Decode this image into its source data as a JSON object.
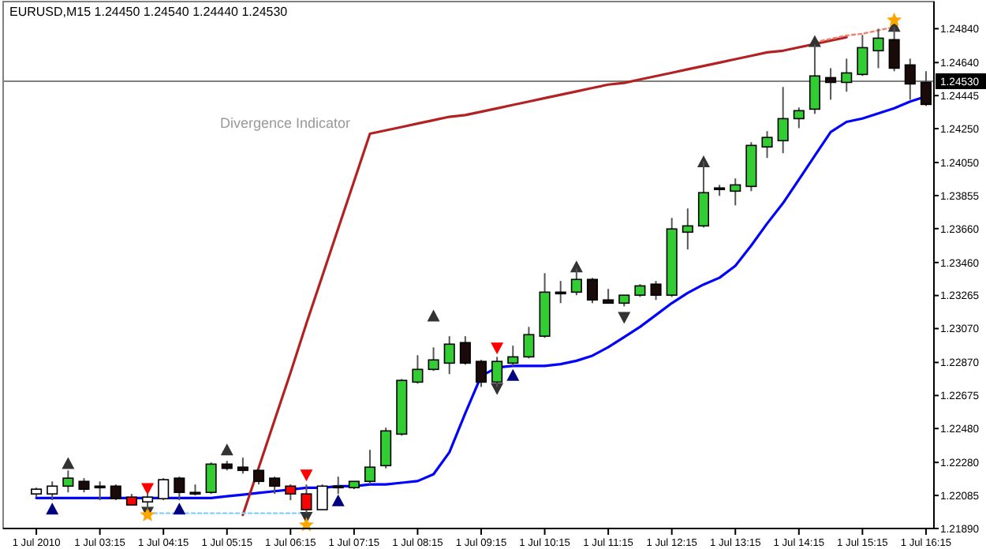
{
  "chart_data": {
    "type": "candlestick",
    "title": "EURUSD,M15  1.24450 1.24540 1.24440 1.24530",
    "categories": [
      "1 Jul 2010",
      null,
      null,
      null,
      "1 Jul 03:15",
      null,
      null,
      null,
      "1 Jul 04:15",
      null,
      null,
      null,
      "1 Jul 05:15",
      null,
      null,
      null,
      "1 Jul 06:15",
      null,
      null,
      null,
      "1 Jul 07:15",
      null,
      null,
      null,
      "1 Jul 08:15",
      null,
      null,
      null,
      "1 Jul 09:15",
      null,
      null,
      null,
      "1 Jul 10:15",
      null,
      null,
      null,
      "1 Jul 11:15",
      null,
      null,
      null,
      "1 Jul 12:15",
      null,
      null,
      null,
      "1 Jul 13:15",
      null,
      null,
      null,
      "1 Jul 14:15",
      null,
      null,
      null,
      "1 Jul 15:15",
      null,
      null,
      null,
      "1 Jul 16:15"
    ],
    "ohlc": [
      [
        1.22094,
        1.22131,
        1.22075,
        1.22122
      ],
      [
        1.22094,
        1.22168,
        1.22057,
        1.2214
      ],
      [
        1.2214,
        1.22233,
        1.22103,
        1.22187
      ],
      [
        1.22168,
        1.22187,
        1.22103,
        1.22122
      ],
      [
        1.2214,
        1.22168,
        1.22057,
        1.2214
      ],
      [
        1.2214,
        1.2215,
        1.22057,
        1.22066
      ],
      [
        1.22075,
        1.22094,
        1.22029,
        1.22029
      ],
      [
        1.22047,
        1.22094,
        1.22001,
        1.22075
      ],
      [
        1.22066,
        1.22187,
        1.22057,
        1.22178
      ],
      [
        1.22187,
        1.22196,
        1.22057,
        1.22103
      ],
      [
        1.22103,
        1.2215,
        1.22085,
        1.22094
      ],
      [
        1.22103,
        1.2228,
        1.22094,
        1.2227
      ],
      [
        1.2227,
        1.22289,
        1.22233,
        1.22245
      ],
      [
        1.22252,
        1.22308,
        1.22214,
        1.22233
      ],
      [
        1.22233,
        1.22245,
        1.2215,
        1.22168
      ],
      [
        1.22187,
        1.22196,
        1.22094,
        1.2214
      ],
      [
        1.2214,
        1.2215,
        1.22057,
        1.22094
      ],
      [
        1.22094,
        1.2215,
        1.21982,
        1.22001
      ],
      [
        1.22001,
        1.2215,
        1.22001,
        1.2214
      ],
      [
        1.2214,
        1.22196,
        1.22094,
        1.22131
      ],
      [
        1.22131,
        1.22168,
        1.22122,
        1.22168
      ],
      [
        1.22168,
        1.22354,
        1.2215,
        1.22252
      ],
      [
        1.22261,
        1.22485,
        1.22245,
        1.22466
      ],
      [
        1.22447,
        1.22772,
        1.22438,
        1.22764
      ],
      [
        1.22754,
        1.22913,
        1.22745,
        1.22829
      ],
      [
        1.22829,
        1.22959,
        1.2282,
        1.22885
      ],
      [
        1.22866,
        1.23025,
        1.22801,
        1.22978
      ],
      [
        1.22987,
        1.23025,
        1.22857,
        1.22866
      ],
      [
        1.22876,
        1.22885,
        1.22726,
        1.22754
      ],
      [
        1.22754,
        1.22903,
        1.22726,
        1.22876
      ],
      [
        1.22866,
        1.22969,
        1.22848,
        1.22903
      ],
      [
        1.22903,
        1.2308,
        1.22894,
        1.23034
      ],
      [
        1.23025,
        1.23397,
        1.23015,
        1.23285
      ],
      [
        1.23276,
        1.23351,
        1.2322,
        1.23285
      ],
      [
        1.23285,
        1.23425,
        1.23267,
        1.2336
      ],
      [
        1.2336,
        1.23369,
        1.2322,
        1.23239
      ],
      [
        1.23239,
        1.23304,
        1.2322,
        1.2322
      ],
      [
        1.2322,
        1.23267,
        1.23201,
        1.23267
      ],
      [
        1.23267,
        1.23332,
        1.23257,
        1.23322
      ],
      [
        1.23332,
        1.23351,
        1.23239,
        1.23267
      ],
      [
        1.23267,
        1.23723,
        1.23257,
        1.23658
      ],
      [
        1.23639,
        1.23779,
        1.23537,
        1.23676
      ],
      [
        1.23676,
        1.24058,
        1.23667,
        1.23872
      ],
      [
        1.239,
        1.23918,
        1.23853,
        1.239
      ],
      [
        1.23881,
        1.23956,
        1.23797,
        1.23918
      ],
      [
        1.23909,
        1.2417,
        1.23881,
        1.24151
      ],
      [
        1.24142,
        1.24235,
        1.24077,
        1.24198
      ],
      [
        1.24179,
        1.24496,
        1.24105,
        1.24309
      ],
      [
        1.24309,
        1.24375,
        1.24253,
        1.24356
      ],
      [
        1.24365,
        1.24747,
        1.24337,
        1.24561
      ],
      [
        1.24551,
        1.24607,
        1.24421,
        1.24523
      ],
      [
        1.24523,
        1.24663,
        1.24468,
        1.24579
      ],
      [
        1.2457,
        1.24803,
        1.24561,
        1.24728
      ],
      [
        1.2471,
        1.2484,
        1.24607,
        1.24784
      ],
      [
        1.24775,
        1.24849,
        1.24589,
        1.24607
      ],
      [
        1.24626,
        1.24663,
        1.24421,
        1.24514
      ],
      [
        1.24523,
        1.24589,
        1.24384,
        1.24393
      ]
    ],
    "colors": [
      "#ffffff",
      "#ffffff",
      "#32cd32",
      "#1a0a0a",
      "#1a0a0a",
      "#1a0a0a",
      "#ff0000",
      "#ffffff",
      "#ffffff",
      "#1a0a0a",
      "#1a0a0a",
      "#32cd32",
      "#1a0a0a",
      "#1a0a0a",
      "#1a0a0a",
      "#1a0a0a",
      "#ff0000",
      "#ff0000",
      "#ffffff",
      "#1a0a0a",
      "#32cd32",
      "#32cd32",
      "#32cd32",
      "#32cd32",
      "#32cd32",
      "#32cd32",
      "#32cd32",
      "#1a0a0a",
      "#1a0a0a",
      "#32cd32",
      "#32cd32",
      "#32cd32",
      "#32cd32",
      "#1a0a0a",
      "#32cd32",
      "#1a0a0a",
      "#1a0a0a",
      "#32cd32",
      "#32cd32",
      "#1a0a0a",
      "#32cd32",
      "#32cd32",
      "#32cd32",
      "#1a0a0a",
      "#32cd32",
      "#32cd32",
      "#32cd32",
      "#32cd32",
      "#32cd32",
      "#32cd32",
      "#1a0a0a",
      "#32cd32",
      "#32cd32",
      "#32cd32",
      "#1a0a0a",
      "#1a0a0a",
      "#1a0a0a"
    ],
    "series": [
      {
        "type": "line",
        "color": "#0000ff",
        "line_style": "solid",
        "values": [
          1.2207,
          1.2207,
          1.2207,
          1.2207,
          1.2207,
          1.2207,
          1.2207,
          1.2207,
          1.2207,
          1.2207,
          1.2207,
          1.2207,
          1.2208,
          1.2209,
          1.221,
          1.2211,
          1.2212,
          1.2213,
          1.2213,
          1.2214,
          1.2214,
          1.2215,
          1.2215,
          1.2216,
          1.2217,
          1.2221,
          1.2234,
          1.2257,
          1.2279,
          1.2284,
          1.2285,
          1.2285,
          1.2285,
          1.2286,
          1.2288,
          1.2291,
          1.2296,
          1.2302,
          1.2308,
          1.2315,
          1.2322,
          1.2328,
          1.2333,
          1.2337,
          1.2344,
          1.2356,
          1.2369,
          1.2381,
          1.2395,
          1.2409,
          1.2423,
          1.2429,
          1.2431,
          1.2434,
          1.2437,
          1.2441,
          1.2444
        ]
      },
      {
        "type": "line",
        "color": "#b22222",
        "line_style": "solid",
        "values": [
          null,
          null,
          null,
          null,
          null,
          null,
          null,
          null,
          null,
          null,
          null,
          null,
          null,
          1.2197,
          1.2225,
          1.2253,
          1.2281,
          1.231,
          1.2338,
          1.2366,
          1.2394,
          1.2422,
          1.2424,
          1.2426,
          1.2428,
          1.243,
          1.2432,
          1.2433,
          1.2435,
          1.2437,
          1.2439,
          1.2441,
          1.2443,
          1.2445,
          1.2447,
          1.2449,
          1.2451,
          1.2452,
          1.2454,
          1.2456,
          1.2458,
          1.246,
          1.2462,
          1.2464,
          1.2466,
          1.2468,
          1.247,
          1.2471,
          1.2473,
          1.2475,
          1.2477,
          1.2479,
          null,
          null,
          null,
          null,
          null
        ]
      },
      {
        "type": "line",
        "color": "#f08070",
        "line_style": "dotted",
        "values": [
          null,
          null,
          null,
          null,
          null,
          null,
          null,
          null,
          null,
          null,
          null,
          null,
          null,
          null,
          null,
          null,
          null,
          null,
          null,
          null,
          null,
          null,
          null,
          null,
          null,
          null,
          null,
          null,
          null,
          null,
          null,
          null,
          null,
          null,
          null,
          null,
          null,
          null,
          null,
          null,
          null,
          null,
          null,
          null,
          null,
          null,
          null,
          null,
          null,
          1.2476,
          1.2478,
          1.248,
          1.2481,
          1.2483,
          1.2485,
          null,
          null
        ]
      },
      {
        "type": "line",
        "color": "#87cefa",
        "line_style": "dotted",
        "values": [
          null,
          null,
          null,
          null,
          null,
          null,
          null,
          1.2198,
          1.2198,
          1.2198,
          1.2198,
          1.2198,
          1.2198,
          1.2198,
          1.2198,
          1.2198,
          1.2198,
          1.2198,
          null,
          null,
          null,
          null,
          null,
          null,
          null,
          null,
          null,
          null,
          null,
          null,
          null,
          null,
          null,
          null,
          null,
          null,
          null,
          null,
          null,
          null,
          null,
          null,
          null,
          null,
          null,
          null,
          null,
          null,
          null,
          null,
          null,
          null,
          null,
          null,
          null,
          null,
          null
        ]
      },
      {
        "type": "scatter",
        "color": "#000080",
        "marker": "triangle",
        "values": [
          null,
          1.22,
          null,
          null,
          null,
          null,
          null,
          null,
          null,
          1.22,
          null,
          null,
          null,
          null,
          null,
          null,
          null,
          null,
          null,
          1.2205,
          null,
          null,
          null,
          null,
          null,
          null,
          null,
          null,
          null,
          null,
          1.2279,
          null,
          null,
          null,
          null,
          null,
          null,
          null,
          null,
          null,
          null,
          null,
          null,
          null,
          null,
          null,
          null,
          null,
          null,
          null,
          null,
          null,
          null,
          null,
          null,
          null,
          null
        ]
      },
      {
        "type": "scatter",
        "color": "#ff0000",
        "marker": "triangle-down",
        "values": [
          null,
          null,
          null,
          null,
          null,
          null,
          null,
          1.2213,
          null,
          null,
          null,
          null,
          null,
          null,
          null,
          null,
          null,
          1.2221,
          null,
          null,
          null,
          null,
          null,
          null,
          null,
          null,
          null,
          null,
          null,
          1.2296,
          null,
          null,
          null,
          null,
          null,
          null,
          null,
          null,
          null,
          null,
          null,
          null,
          null,
          null,
          null,
          null,
          null,
          null,
          null,
          null,
          null,
          null,
          null,
          null,
          null,
          null,
          null
        ]
      },
      {
        "type": "scatter",
        "color": "#333333",
        "marker": "triangle",
        "values": [
          null,
          null,
          1.2227,
          null,
          null,
          null,
          null,
          null,
          null,
          null,
          null,
          null,
          1.2235,
          null,
          null,
          null,
          null,
          null,
          null,
          null,
          null,
          null,
          null,
          null,
          null,
          1.2314,
          null,
          null,
          null,
          null,
          null,
          null,
          null,
          null,
          1.2343,
          null,
          null,
          null,
          null,
          null,
          null,
          null,
          1.2405,
          null,
          null,
          null,
          null,
          null,
          null,
          1.2476,
          null,
          null,
          null,
          null,
          1.2485,
          null,
          null
        ]
      },
      {
        "type": "scatter",
        "color": "#333333",
        "marker": "triangle-down",
        "values": [
          null,
          null,
          null,
          null,
          null,
          null,
          null,
          1.2199,
          null,
          null,
          null,
          null,
          null,
          null,
          null,
          null,
          null,
          1.2196,
          null,
          null,
          null,
          null,
          null,
          null,
          null,
          null,
          null,
          null,
          null,
          1.2272,
          null,
          null,
          null,
          null,
          null,
          null,
          null,
          1.2314,
          null,
          null,
          null,
          null,
          null,
          null,
          null,
          null,
          null,
          null,
          null,
          null,
          null,
          null,
          null,
          null,
          null,
          null,
          null
        ]
      },
      {
        "type": "scatter",
        "color": "#ffa500",
        "marker": "star",
        "values": [
          null,
          null,
          null,
          null,
          null,
          null,
          null,
          1.2197,
          null,
          null,
          null,
          null,
          null,
          null,
          null,
          null,
          null,
          1.2191,
          null,
          null,
          null,
          null,
          null,
          null,
          null,
          null,
          null,
          null,
          null,
          null,
          null,
          null,
          null,
          null,
          null,
          null,
          null,
          null,
          null,
          null,
          null,
          null,
          null,
          null,
          null,
          null,
          null,
          null,
          null,
          null,
          null,
          null,
          null,
          null,
          1.2489,
          null,
          null
        ]
      }
    ],
    "ylim": [
      1.2189,
      1.25
    ],
    "yticks": [
      {
        "value": 1.2484,
        "label": "1.24840"
      },
      {
        "value": 1.2464,
        "label": "1.24640"
      },
      {
        "value": 1.24445,
        "label": "1.24445"
      },
      {
        "value": 1.2425,
        "label": "1.24250"
      },
      {
        "value": 1.2405,
        "label": "1.24050"
      },
      {
        "value": 1.23855,
        "label": "1.23855"
      },
      {
        "value": 1.2366,
        "label": "1.23660"
      },
      {
        "value": 1.2346,
        "label": "1.23460"
      },
      {
        "value": 1.23265,
        "label": "1.23265"
      },
      {
        "value": 1.2307,
        "label": "1.23070"
      },
      {
        "value": 1.2287,
        "label": "1.22870"
      },
      {
        "value": 1.22675,
        "label": "1.22675"
      },
      {
        "value": 1.2248,
        "label": "1.22480"
      },
      {
        "value": 1.2228,
        "label": "1.22280"
      },
      {
        "value": 1.22085,
        "label": "1.22085"
      },
      {
        "value": 1.2189,
        "label": "1.21890"
      }
    ],
    "ref_lines": [
      {
        "axis": "y",
        "value": 1.2453,
        "label": "1.24530",
        "color": "#808080"
      }
    ],
    "annotations": [
      "Divergence Indicator"
    ]
  }
}
